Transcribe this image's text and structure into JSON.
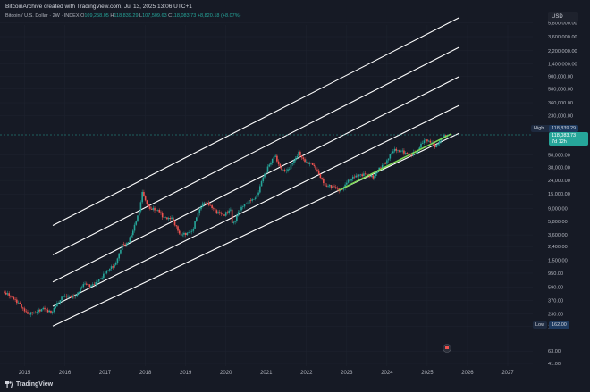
{
  "caption": "BitcoinArchive created with TradingView.com, Jul 13, 2025 13:06 UTC+1",
  "symbol": "Bitcoin / U.S. Dollar · 2W · INDEX",
  "ohlc": {
    "open_label": "O",
    "open": "109,258.05",
    "high_label": "H",
    "high": "118,839.29",
    "low_label": "L",
    "low": "107,509.63",
    "close_label": "C",
    "close": "118,083.73",
    "change": "+8,820.18 (+8.07%)"
  },
  "currency": "USD",
  "high_tag": {
    "label": "High",
    "value": "118,839.29"
  },
  "price_tag": {
    "value": "118,083.73",
    "countdown": "7d 12h"
  },
  "low_tag": {
    "label": "Low",
    "value": "162.00"
  },
  "footer_logo": "TradingView",
  "colors": {
    "background": "#161a25",
    "up": "#26a69a",
    "down": "#ef5350",
    "channel": "#ffffff",
    "trend": "#7ed957",
    "price_tag": "#26a69a",
    "high_low_tag": "#1e3a5f"
  },
  "chart_data": {
    "type": "candlestick",
    "y_scale": "log",
    "y_ticks": [
      "5,800,000.00",
      "3,600,000.00",
      "2,200,000.00",
      "1,400,000.00",
      "900,000.00",
      "580,000.00",
      "360,000.00",
      "230,000.00",
      "58,000.00",
      "38,000.00",
      "24,000.00",
      "15,000.00",
      "9,000.00",
      "5,800.00",
      "3,600.00",
      "2,400.00",
      "1,500.00",
      "950.00",
      "590.00",
      "370.00",
      "230.00",
      "150.00",
      "63.00",
      "41.00"
    ],
    "x_ticks": [
      "2015",
      "2016",
      "2017",
      "2018",
      "2019",
      "2020",
      "2021",
      "2022",
      "2023",
      "2024",
      "2025",
      "2026",
      "2027"
    ],
    "price_path": [
      [
        2014.5,
        500
      ],
      [
        2014.7,
        420
      ],
      [
        2014.9,
        330
      ],
      [
        2015.1,
        230
      ],
      [
        2015.3,
        240
      ],
      [
        2015.5,
        280
      ],
      [
        2015.7,
        240
      ],
      [
        2015.85,
        330
      ],
      [
        2016.0,
        430
      ],
      [
        2016.3,
        420
      ],
      [
        2016.5,
        660
      ],
      [
        2016.7,
        610
      ],
      [
        2016.9,
        760
      ],
      [
        2017.1,
        1050
      ],
      [
        2017.3,
        1300
      ],
      [
        2017.45,
        2500
      ],
      [
        2017.6,
        2700
      ],
      [
        2017.75,
        4500
      ],
      [
        2017.9,
        9000
      ],
      [
        2017.97,
        17000
      ],
      [
        2018.05,
        11000
      ],
      [
        2018.15,
        9000
      ],
      [
        2018.35,
        8500
      ],
      [
        2018.5,
        6500
      ],
      [
        2018.7,
        6400
      ],
      [
        2018.9,
        3600
      ],
      [
        2019.0,
        3700
      ],
      [
        2019.2,
        4100
      ],
      [
        2019.35,
        8000
      ],
      [
        2019.5,
        11500
      ],
      [
        2019.65,
        10000
      ],
      [
        2019.8,
        8000
      ],
      [
        2020.0,
        7200
      ],
      [
        2020.15,
        9000
      ],
      [
        2020.2,
        5000
      ],
      [
        2020.4,
        9200
      ],
      [
        2020.6,
        11500
      ],
      [
        2020.8,
        13500
      ],
      [
        2020.95,
        26000
      ],
      [
        2021.1,
        40000
      ],
      [
        2021.25,
        58000
      ],
      [
        2021.4,
        36000
      ],
      [
        2021.55,
        33000
      ],
      [
        2021.7,
        45000
      ],
      [
        2021.85,
        63000
      ],
      [
        2022.0,
        46000
      ],
      [
        2022.2,
        42000
      ],
      [
        2022.35,
        30000
      ],
      [
        2022.5,
        20000
      ],
      [
        2022.7,
        19500
      ],
      [
        2022.9,
        16500
      ],
      [
        2023.05,
        23000
      ],
      [
        2023.25,
        28000
      ],
      [
        2023.5,
        30000
      ],
      [
        2023.7,
        26500
      ],
      [
        2023.85,
        37000
      ],
      [
        2024.0,
        44000
      ],
      [
        2024.2,
        70000
      ],
      [
        2024.45,
        65000
      ],
      [
        2024.6,
        58000
      ],
      [
        2024.8,
        68000
      ],
      [
        2024.95,
        98000
      ],
      [
        2025.1,
        94000
      ],
      [
        2025.25,
        78000
      ],
      [
        2025.4,
        105000
      ],
      [
        2025.53,
        118000
      ]
    ],
    "channel_lines": [
      {
        "x": [
          2015.7,
          2025.8
        ],
        "y": [
          5000,
          7000000
        ]
      },
      {
        "x": [
          2015.7,
          2025.8
        ],
        "y": [
          1800,
          2500000
        ]
      },
      {
        "x": [
          2015.7,
          2025.8
        ],
        "y": [
          700,
          900000
        ]
      },
      {
        "x": [
          2015.7,
          2025.8
        ],
        "y": [
          300,
          330000
        ]
      },
      {
        "x": [
          2015.7,
          2025.8
        ],
        "y": [
          150,
          125000
        ]
      }
    ],
    "trend_line": {
      "x": [
        2022.8,
        2025.6
      ],
      "y": [
        17000,
        122000
      ]
    }
  }
}
